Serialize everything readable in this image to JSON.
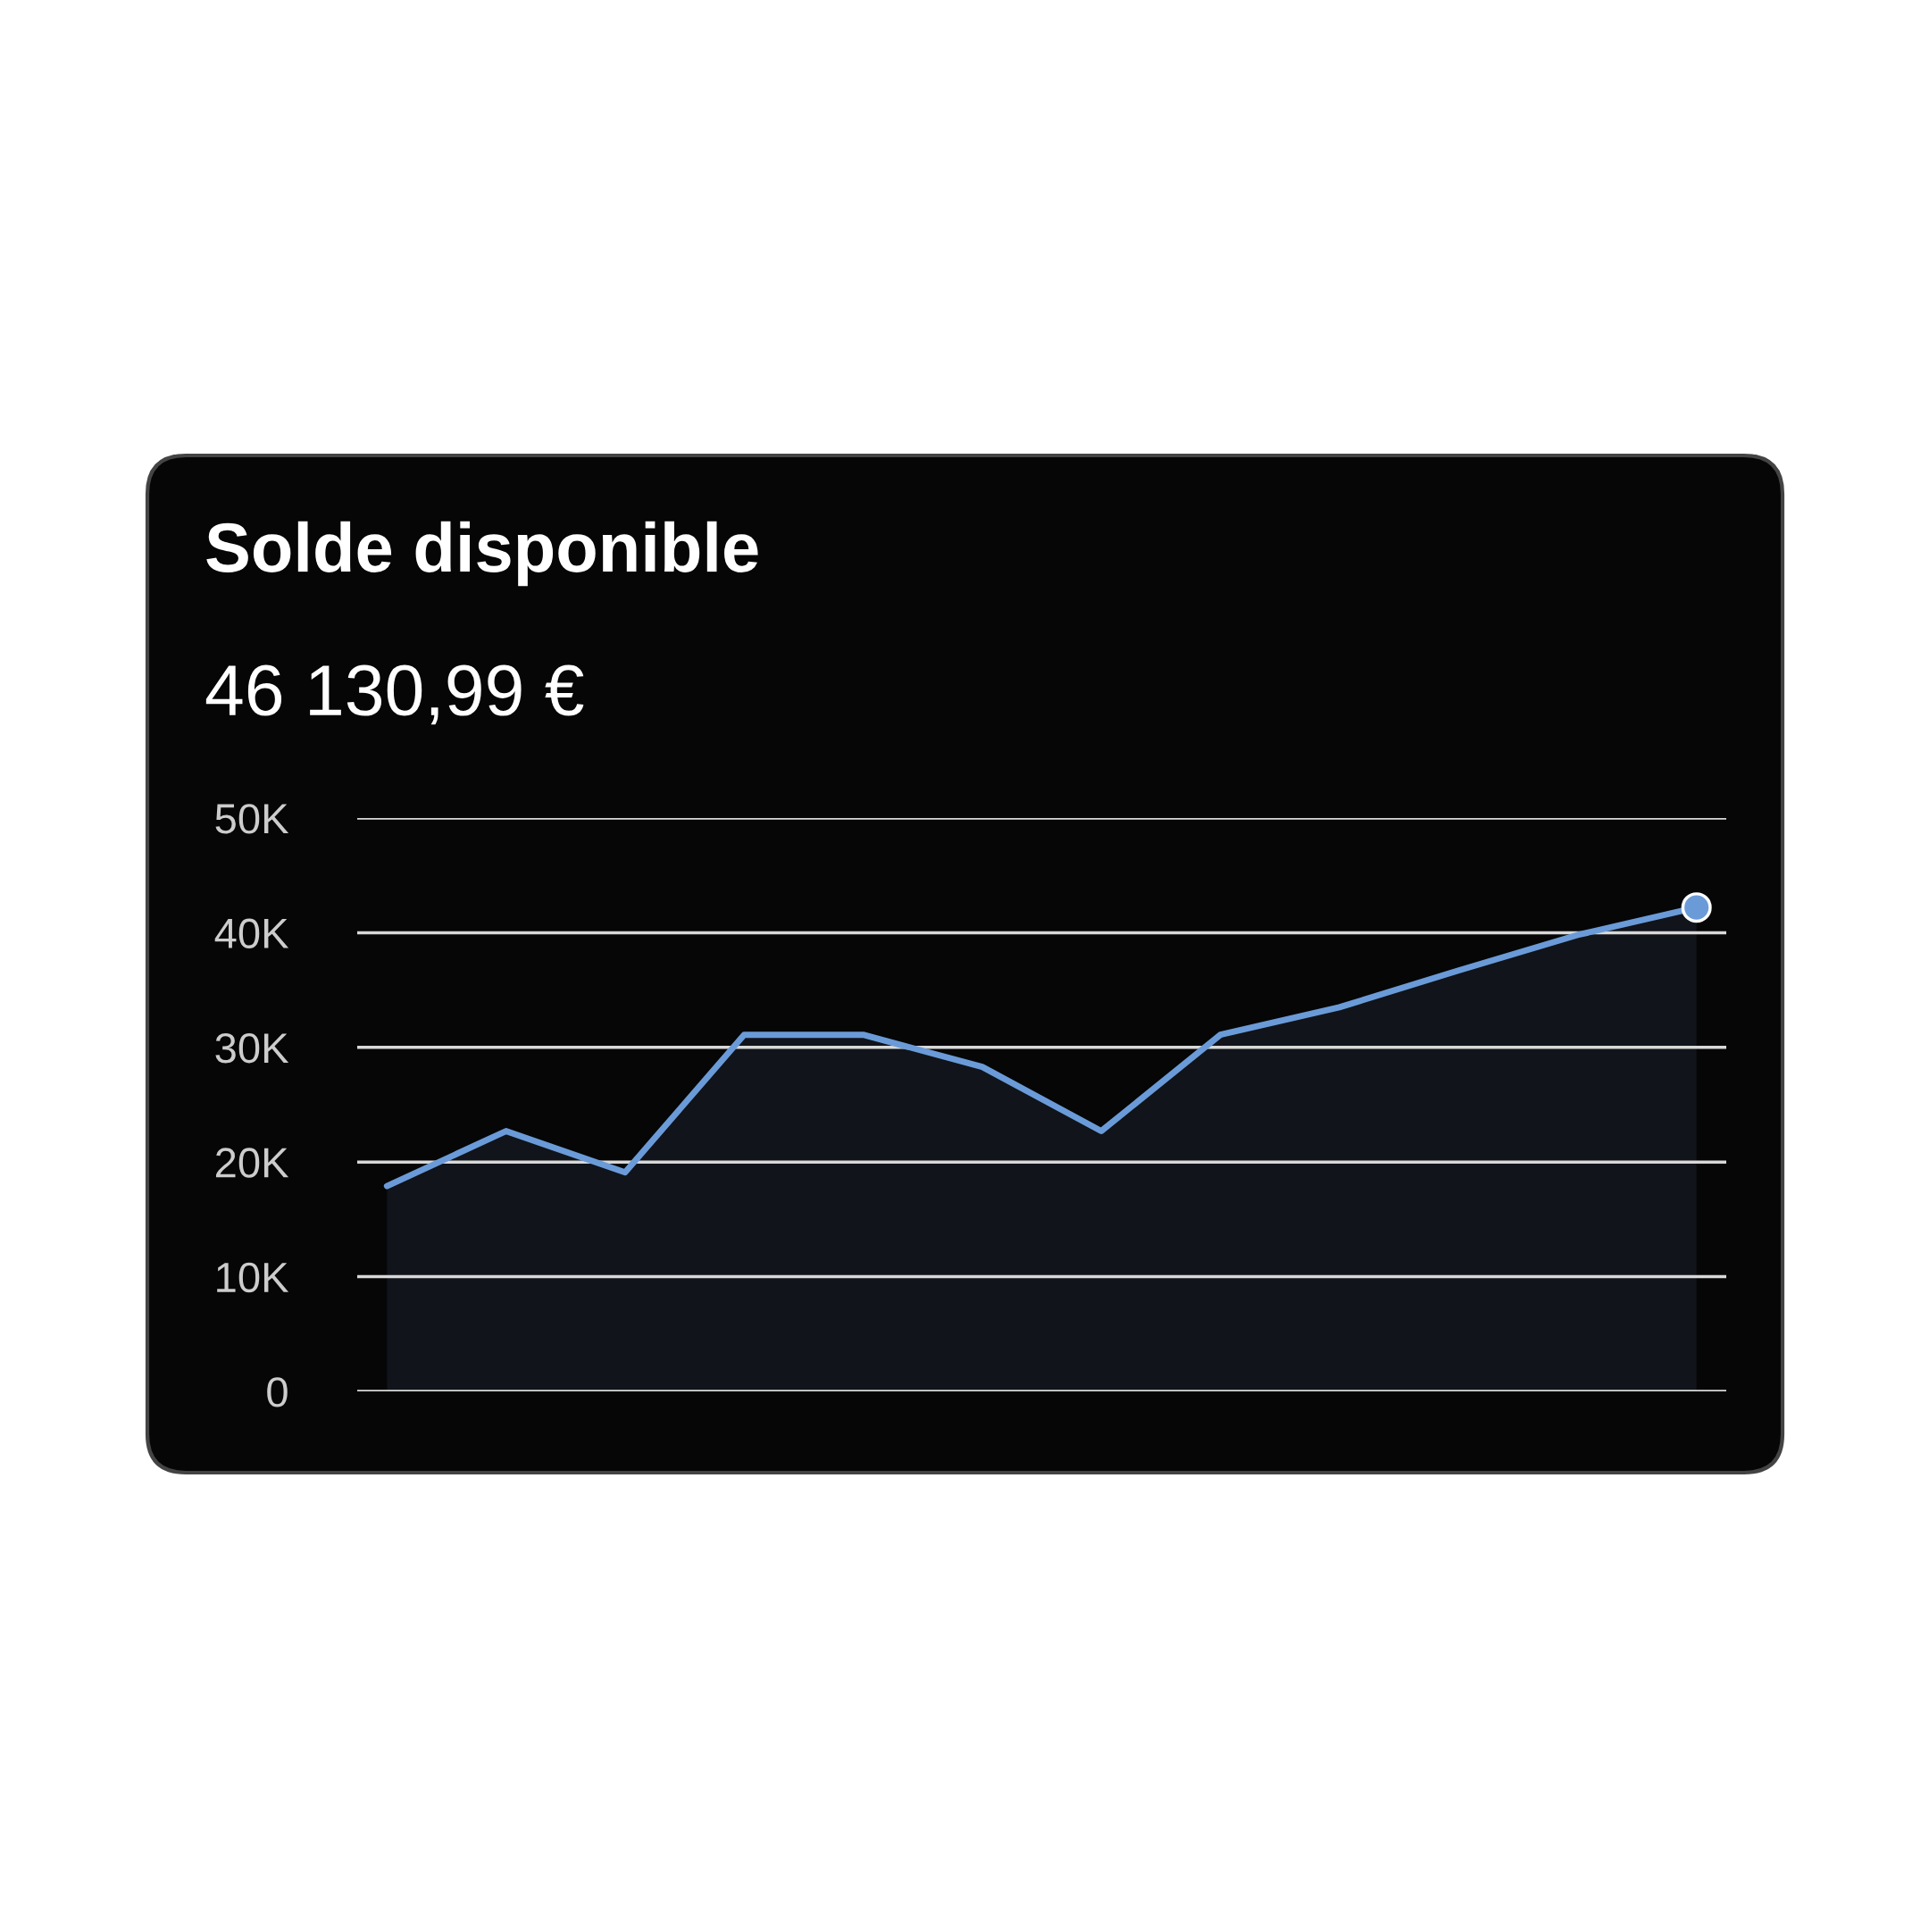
{
  "chart_data": {
    "type": "area",
    "title": "Solde disponible",
    "subtitle": "46 130,99 €",
    "categories": [
      null,
      null,
      null,
      null,
      null,
      null,
      null,
      null,
      null,
      null,
      null,
      null
    ],
    "series": [
      {
        "color": "#6a9bd8",
        "values": [
          17900,
          22700,
          19100,
          31100,
          31100,
          28300,
          22700,
          31100,
          33500,
          36700,
          39800,
          42200
        ]
      }
    ],
    "ylim": [
      0,
      50000
    ],
    "yticks": [
      0,
      {
        "value": 10000,
        "label": "10K"
      },
      {
        "value": 20000,
        "label": "20K"
      },
      {
        "value": 30000,
        "label": "30K"
      },
      {
        "value": 40000,
        "label": "40K"
      },
      {
        "value": 50000,
        "label": "50K"
      }
    ],
    "grid": "y",
    "tick_labels": "y"
  }
}
